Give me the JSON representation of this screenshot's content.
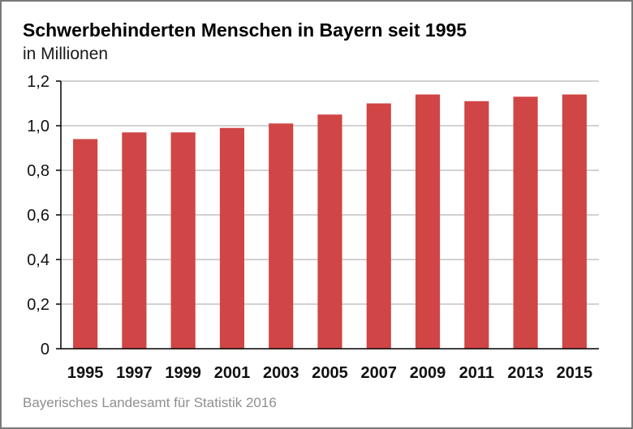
{
  "chart_data": {
    "type": "bar",
    "title": "Schwerbehinderten Menschen in Bayern seit 1995",
    "subtitle": "in Millionen",
    "source": "Bayerisches Landesamt für Statistik 2016",
    "categories": [
      "1995",
      "1997",
      "1999",
      "2001",
      "2003",
      "2005",
      "2007",
      "2009",
      "2011",
      "2013",
      "2015"
    ],
    "values": [
      0.94,
      0.97,
      0.97,
      0.99,
      1.01,
      1.05,
      1.1,
      1.14,
      1.11,
      1.13,
      1.14
    ],
    "ylim": [
      0,
      1.2
    ],
    "yticks": [
      0,
      0.2,
      0.4,
      0.6,
      0.8,
      1.0,
      1.2
    ],
    "ytick_labels": [
      "0",
      "0,2",
      "0,4",
      "0,6",
      "0,8",
      "1,0",
      "1,2"
    ],
    "grid": true,
    "colors": {
      "bar": "#d04545",
      "grid": "#c4c4c4",
      "axis": "#000000"
    }
  }
}
